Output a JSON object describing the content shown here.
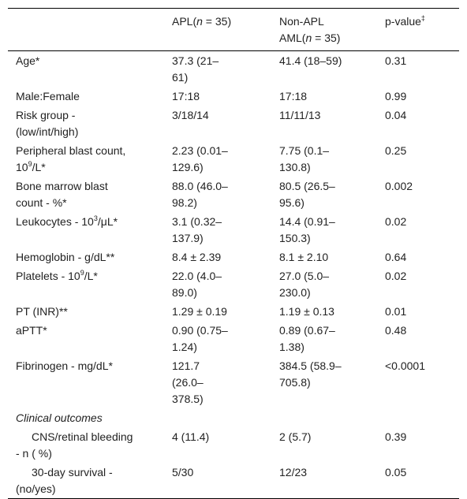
{
  "table": {
    "header": [
      [],
      [
        "APL(",
        {
          "text": "n",
          "style": "italic"
        },
        " = 35)"
      ],
      [
        "Non-APL AML(",
        {
          "text": "n",
          "style": "italic"
        },
        " = 35)"
      ],
      [
        "p-value",
        {
          "text": "‡",
          "style": "sup"
        }
      ]
    ],
    "rows": [
      {
        "cells": [
          [
            "Age*"
          ],
          [
            "37.3 (21–61)"
          ],
          [
            "41.4 (18–59)"
          ],
          [
            "0.31"
          ]
        ]
      },
      {
        "cells": [
          [
            "Male:Female"
          ],
          [
            "17:18"
          ],
          [
            "17:18"
          ],
          [
            "0.99"
          ]
        ]
      },
      {
        "cells": [
          [
            "Risk group - (low/int/high)"
          ],
          [
            "3/18/14"
          ],
          [
            "11/11/13"
          ],
          [
            "0.04"
          ]
        ]
      },
      {
        "cells": [
          [
            "Peripheral blast count, 10",
            {
              "text": "9",
              "style": "sup"
            },
            "/L*"
          ],
          [
            "2.23 (0.01–129.6)"
          ],
          [
            "7.75 (0.1–130.8)"
          ],
          [
            "0.25"
          ]
        ]
      },
      {
        "cells": [
          [
            "Bone marrow blast count - %*"
          ],
          [
            "88.0 (46.0–98.2)"
          ],
          [
            "80.5 (26.5–95.6)"
          ],
          [
            "0.002"
          ]
        ]
      },
      {
        "cells": [
          [
            "Leukocytes - 10",
            {
              "text": "3",
              "style": "sup"
            },
            "/μL*"
          ],
          [
            "3.1 (0.32–137.9)"
          ],
          [
            "14.4 (0.91–150.3)"
          ],
          [
            "0.02"
          ]
        ]
      },
      {
        "cells": [
          [
            "Hemoglobin - g/dL**"
          ],
          [
            "8.4 ± 2.39"
          ],
          [
            "8.1 ± 2.10"
          ],
          [
            "0.64"
          ]
        ]
      },
      {
        "cells": [
          [
            "Platelets - 10",
            {
              "text": "9",
              "style": "sup"
            },
            "/L*"
          ],
          [
            "22.0 (4.0–89.0)"
          ],
          [
            "27.0 (5.0–230.0)"
          ],
          [
            "0.02"
          ]
        ]
      },
      {
        "cells": [
          [
            "PT (INR)**"
          ],
          [
            "1.29 ± 0.19"
          ],
          [
            "1.19 ± 0.13"
          ],
          [
            "0.01"
          ]
        ]
      },
      {
        "cells": [
          [
            "aPTT*"
          ],
          [
            "0.90 (0.75–1.24)"
          ],
          [
            "0.89 (0.67–1.38)"
          ],
          [
            "0.48"
          ]
        ]
      },
      {
        "cells": [
          [
            "Fibrinogen - mg/dL*"
          ],
          [
            "121.7 (26.0–378.5)"
          ],
          [
            "384.5 (58.9–705.8)"
          ],
          [
            "<0.0001"
          ]
        ]
      },
      {
        "cells": [
          [
            {
              "text": "Clinical outcomes",
              "style": "italic"
            }
          ]
        ]
      },
      {
        "indent": true,
        "cells": [
          [
            "CNS/retinal bleeding - n ( %)"
          ],
          [
            "4 (11.4)"
          ],
          [
            "2 (5.7)"
          ],
          [
            "0.39"
          ]
        ]
      },
      {
        "indent": true,
        "cells": [
          [
            "30-day survival - (no/yes)"
          ],
          [
            "5/30"
          ],
          [
            "12/23"
          ],
          [
            "0.05"
          ]
        ]
      }
    ]
  }
}
